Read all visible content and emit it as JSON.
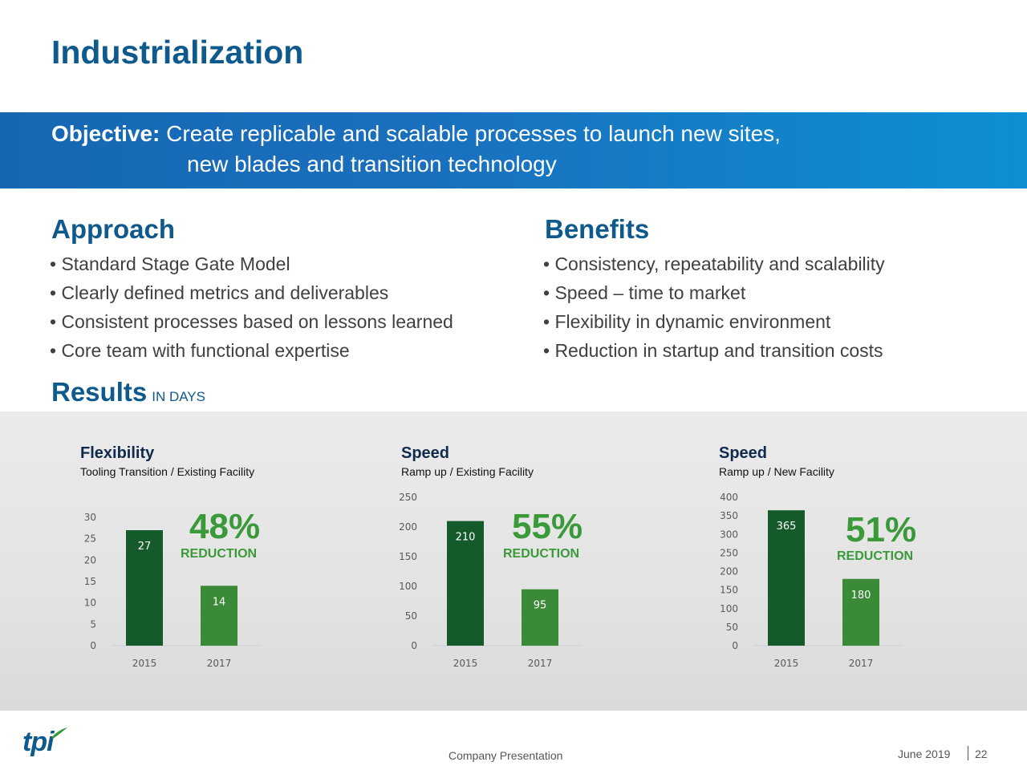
{
  "title": "Industrialization",
  "objective": {
    "label": "Objective:",
    "line1": " Create replicable and scalable processes to launch new sites,",
    "line2": "new blades and transition technology"
  },
  "approach": {
    "heading": "Approach",
    "items": [
      "• Standard Stage Gate Model",
      "• Clearly defined metrics and deliverables",
      "• Consistent processes based on lessons learned",
      "• Core team with functional expertise"
    ]
  },
  "benefits": {
    "heading": "Benefits",
    "items": [
      "• Consistency, repeatability and scalability",
      "• Speed – time to market",
      "• Flexibility in dynamic environment",
      "• Reduction in startup and transition costs"
    ]
  },
  "results": {
    "heading": "Results",
    "sub": "IN DAYS"
  },
  "colors": {
    "dark_green": "#145a2b",
    "light_green": "#3a8a37",
    "accent_green": "#3a9a3a",
    "blue": "#0f5a8c"
  },
  "chart_data": [
    {
      "type": "bar",
      "title": "Flexibility",
      "subtitle": "Tooling Transition / Existing Facility",
      "categories": [
        "2015",
        "2017"
      ],
      "values": [
        27,
        14
      ],
      "ylim": [
        0,
        30
      ],
      "yticks": [
        0,
        5,
        10,
        15,
        20,
        25,
        30
      ],
      "annotation": "48%",
      "annotation_sub": "REDUCTION"
    },
    {
      "type": "bar",
      "title": "Speed",
      "subtitle": "Ramp up / Existing Facility",
      "categories": [
        "2015",
        "2017"
      ],
      "values": [
        210,
        95
      ],
      "ylim": [
        0,
        250
      ],
      "yticks": [
        0,
        50,
        100,
        150,
        200,
        250
      ],
      "annotation": "55%",
      "annotation_sub": "REDUCTION"
    },
    {
      "type": "bar",
      "title": "Speed",
      "subtitle": "Ramp up / New Facility",
      "categories": [
        "2015",
        "2017"
      ],
      "values": [
        365,
        180
      ],
      "ylim": [
        0,
        400
      ],
      "yticks": [
        0,
        50,
        100,
        150,
        200,
        250,
        300,
        350,
        400
      ],
      "annotation": "51%",
      "annotation_sub": "REDUCTION"
    }
  ],
  "footer": {
    "center": "Company Presentation",
    "date": "June 2019",
    "page": "22",
    "logo": "tpi"
  }
}
